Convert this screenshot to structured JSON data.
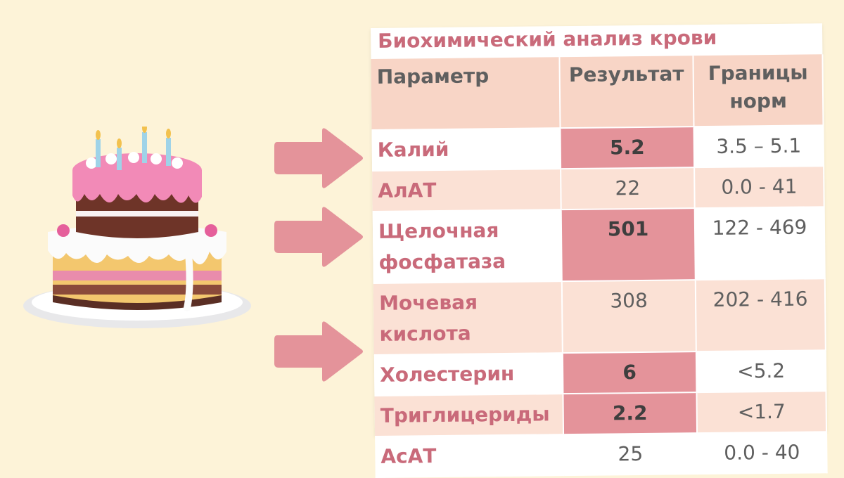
{
  "table": {
    "title": "Биохимический анализ крови",
    "headers": {
      "parameter": "Параметр",
      "result": "Результат",
      "range": "Границы норм"
    },
    "rows": [
      {
        "name": "Калий",
        "value": "5.2",
        "range": "3.5 – 5.1",
        "high": true
      },
      {
        "name": "АлАТ",
        "value": "22",
        "range": "0.0 - 41",
        "high": false
      },
      {
        "name": "Щелочная фосфатаза",
        "value": "501",
        "range": "122 - 469",
        "high": true
      },
      {
        "name": "Мочевая кислота",
        "value": "308",
        "range": "202 - 416",
        "high": false
      },
      {
        "name": "Холестерин",
        "value": "6",
        "range": "<5.2",
        "high": true
      },
      {
        "name": "Триглицериды",
        "value": "2.2",
        "range": "<1.7",
        "high": true
      },
      {
        "name": "АсАТ",
        "value": "25",
        "range": "0.0 - 40",
        "high": false
      }
    ]
  },
  "icons": {
    "cake": "birthday-cake-icon",
    "arrow": "right-arrow-icon"
  },
  "colors": {
    "background": "#fdf3d8",
    "header_fill": "#f8d5c6",
    "row_shade": "#fbe1d5",
    "highlight": "#e4939a",
    "accent_text": "#c96a7a",
    "arrow": "#e4939a"
  }
}
